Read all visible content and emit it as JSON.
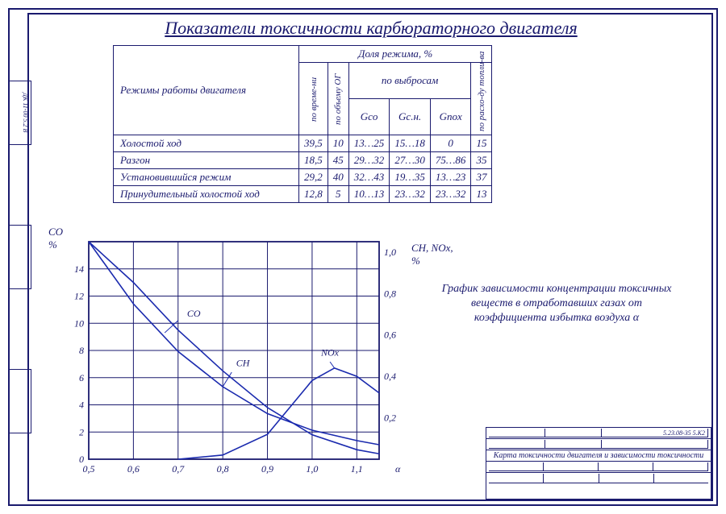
{
  "title": "Показатели токсичности карбюраторного двигателя",
  "side_label": "ДК 11-00 5.2 В",
  "table": {
    "header_main": "Режимы работы двигателя",
    "header_group": "Доля режима, %",
    "header_sub_emissions": "по выбросам",
    "cols_vertical": [
      "по време-ни",
      "по объему ОГ",
      "по расхо-ду топли-ва"
    ],
    "cols_emissions": [
      "Gco",
      "Gc.н.",
      "Gnox"
    ],
    "rows": [
      {
        "label": "Холостой ход",
        "v": [
          "39,5",
          "10",
          "13…25",
          "15…18",
          "0",
          "15"
        ]
      },
      {
        "label": "Разгон",
        "v": [
          "18,5",
          "45",
          "29…32",
          "27…30",
          "75…86",
          "35"
        ]
      },
      {
        "label": "Установившийся режим",
        "v": [
          "29,2",
          "40",
          "32…43",
          "19…35",
          "13…23",
          "37"
        ]
      },
      {
        "label": "Принудительный холостой ход",
        "v": [
          "12,8",
          "5",
          "10…13",
          "23…32",
          "23…32",
          "13"
        ]
      }
    ]
  },
  "chart": {
    "left_title": "CO\n%",
    "right_title": "CH, NOx,\n%",
    "x_label": "α",
    "x_ticks": [
      "0,5",
      "0,6",
      "0,7",
      "0,8",
      "0,9",
      "1,0",
      "1,1"
    ],
    "left_ticks": [
      "14",
      "12",
      "10",
      "8",
      "6",
      "4",
      "2",
      "0"
    ],
    "right_ticks": [
      "1,0",
      "0,8",
      "0,6",
      "0,4",
      "0,2"
    ],
    "curves": {
      "CO": {
        "label": "CO",
        "points": [
          [
            0.5,
            16
          ],
          [
            0.6,
            13
          ],
          [
            0.7,
            9.5
          ],
          [
            0.8,
            6.5
          ],
          [
            0.9,
            3.8
          ],
          [
            1.0,
            1.8
          ],
          [
            1.1,
            0.7
          ],
          [
            1.15,
            0.4
          ]
        ]
      },
      "CH": {
        "label": "CH",
        "points_r": [
          [
            0.5,
            1.05
          ],
          [
            0.6,
            0.75
          ],
          [
            0.7,
            0.52
          ],
          [
            0.8,
            0.35
          ],
          [
            0.9,
            0.22
          ],
          [
            1.0,
            0.14
          ],
          [
            1.1,
            0.09
          ],
          [
            1.15,
            0.07
          ]
        ]
      },
      "NOx": {
        "label": "NOx",
        "points_r": [
          [
            0.7,
            0.0
          ],
          [
            0.8,
            0.02
          ],
          [
            0.9,
            0.12
          ],
          [
            0.95,
            0.25
          ],
          [
            1.0,
            0.38
          ],
          [
            1.05,
            0.44
          ],
          [
            1.1,
            0.4
          ],
          [
            1.15,
            0.32
          ]
        ]
      }
    },
    "grid_color": "#1a1a6e",
    "line_color": "#1a2aae",
    "xlim": [
      0.5,
      1.15
    ],
    "ylim_left": [
      0,
      16
    ],
    "ylim_right": [
      0,
      1.05
    ]
  },
  "caption": "График зависимости концентрации токсичных веществ в отработавших газах от коэффициента избытка воздуха α",
  "title_block": {
    "code": "5.23.08-35 5.К2",
    "desc": "Карта токсичности двигателя и зависимости токсичности"
  }
}
